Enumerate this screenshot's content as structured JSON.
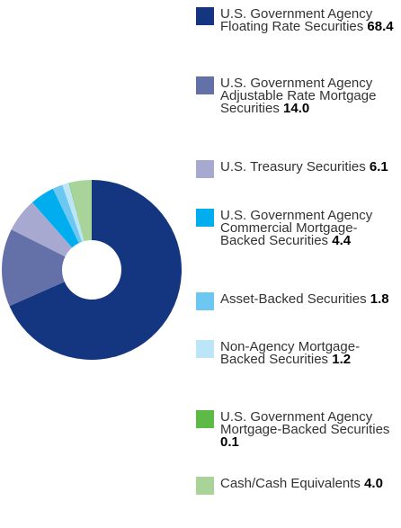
{
  "chart_data": {
    "type": "donut",
    "categories": [
      "U.S. Government Agency Floating Rate Securities",
      "U.S. Government Agency Adjustable Rate Mortgage Securities",
      "U.S. Treasury Securities",
      "U.S. Government Agency Commercial Mortgage-Backed Securities",
      "Asset-Backed Securities",
      "Non-Agency Mortgage-Backed Securities",
      "U.S. Government Agency Mortgage-Backed Securities",
      "Cash/Cash Equivalents"
    ],
    "values": [
      68.4,
      14.0,
      6.1,
      4.4,
      1.8,
      1.2,
      0.1,
      4.0
    ],
    "value_labels": [
      "68.4",
      "14.0",
      "6.1",
      "4.4",
      "1.8",
      "1.2",
      "0.1",
      "4.0"
    ],
    "colors": [
      "#14357f",
      "#6470a8",
      "#a7a9d0",
      "#00aeef",
      "#6cc8f0",
      "#bde5f8",
      "#5dba47",
      "#a8d49a"
    ]
  }
}
